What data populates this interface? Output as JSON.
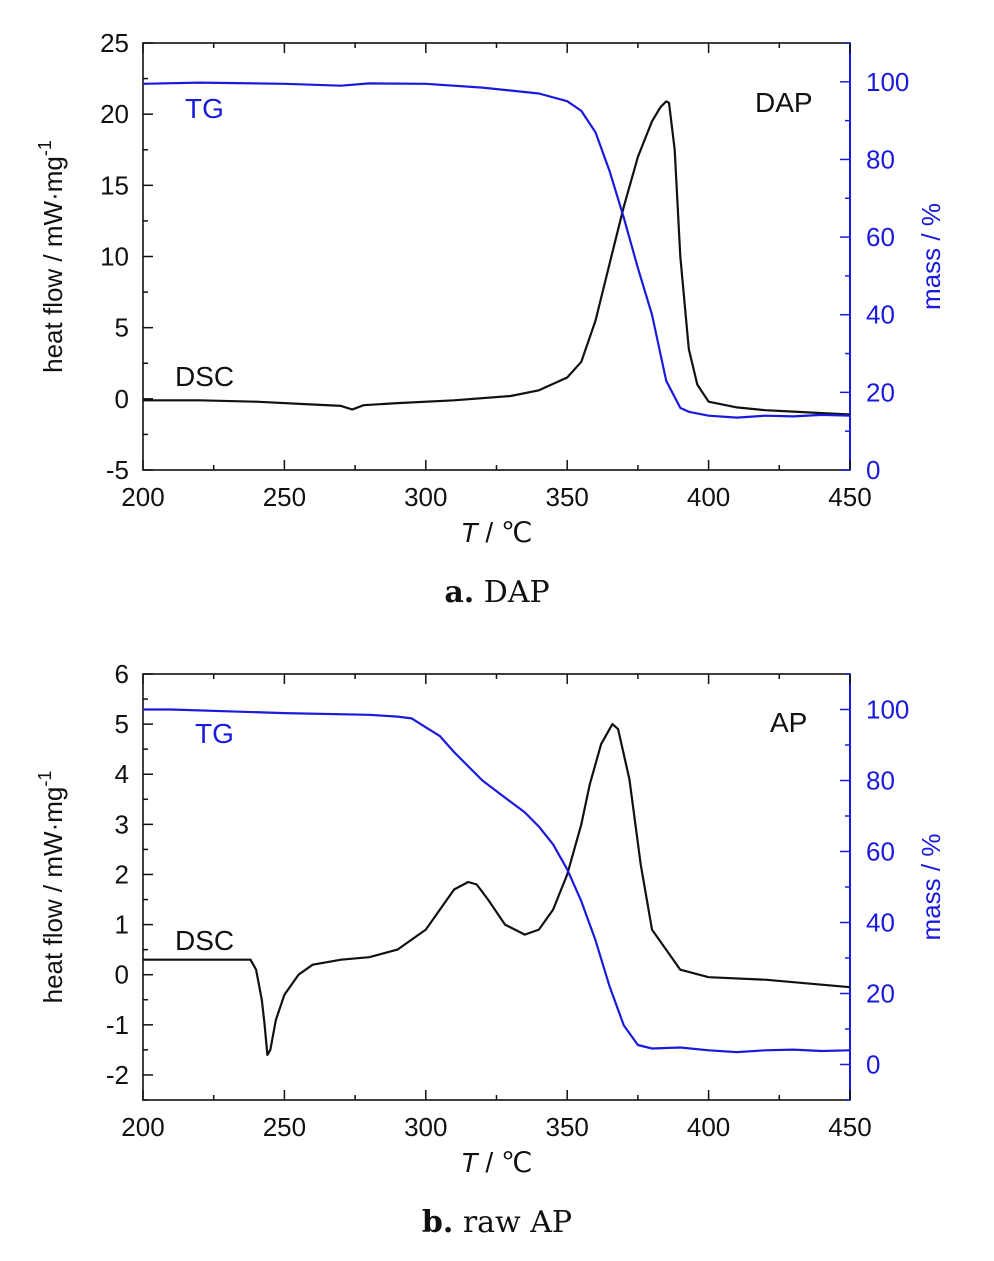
{
  "colors": {
    "dsc": "#111111",
    "tg": "#1a1adc",
    "axis": "#111111"
  },
  "chart_data": [
    {
      "type": "line",
      "panel_letter": "a.",
      "panel_caption": "DAP",
      "sample_label": "DAP",
      "xlabel_var": "T",
      "xlabel_unit": " / ℃",
      "ylabel": "heat flow / mW·mg",
      "ylabel_exp": "-1",
      "y2label": "mass / %",
      "xlim": [
        200,
        450
      ],
      "ylim": [
        -5,
        25
      ],
      "y2lim": [
        0,
        110
      ],
      "xticks": [
        200,
        250,
        300,
        350,
        400,
        450
      ],
      "yticks": [
        -5,
        0,
        5,
        10,
        15,
        20,
        25
      ],
      "y2ticks": [
        0,
        20,
        40,
        60,
        80,
        100
      ],
      "series": [
        {
          "name": "DSC",
          "axis": "left",
          "x": [
            200,
            220,
            240,
            260,
            270,
            274,
            278,
            290,
            310,
            330,
            340,
            350,
            355,
            360,
            365,
            370,
            375,
            380,
            383,
            385,
            386,
            388,
            390,
            393,
            396,
            400,
            410,
            420,
            430,
            440,
            450
          ],
          "y": [
            -0.1,
            -0.1,
            -0.2,
            -0.4,
            -0.5,
            -0.75,
            -0.45,
            -0.3,
            -0.1,
            0.2,
            0.6,
            1.5,
            2.6,
            5.5,
            9.5,
            13.5,
            17.0,
            19.5,
            20.5,
            20.9,
            20.8,
            17.5,
            10.0,
            3.5,
            1.0,
            -0.2,
            -0.6,
            -0.8,
            -0.9,
            -1.0,
            -1.1
          ]
        },
        {
          "name": "TG",
          "axis": "right",
          "x": [
            200,
            220,
            250,
            270,
            280,
            300,
            320,
            340,
            350,
            355,
            360,
            365,
            370,
            375,
            380,
            385,
            390,
            393,
            400,
            410,
            420,
            430,
            440,
            450
          ],
          "y": [
            99.5,
            99.8,
            99.5,
            99,
            99.6,
            99.5,
            98.5,
            97,
            95,
            92.5,
            87,
            77,
            65,
            52,
            40,
            23,
            16,
            15,
            14,
            13.5,
            14,
            13.8,
            14.2,
            14
          ]
        }
      ]
    },
    {
      "type": "line",
      "panel_letter": "b.",
      "panel_caption": "raw AP",
      "sample_label": "AP",
      "xlabel_var": "T",
      "xlabel_unit": " / ℃",
      "ylabel": "heat flow / mW·mg",
      "ylabel_exp": "-1",
      "y2label": "mass / %",
      "xlim": [
        200,
        450
      ],
      "ylim": [
        -2.5,
        6
      ],
      "y2lim": [
        -10,
        110
      ],
      "xticks": [
        200,
        250,
        300,
        350,
        400,
        450
      ],
      "yticks": [
        -2,
        -1,
        0,
        1,
        2,
        3,
        4,
        5,
        6
      ],
      "y2ticks": [
        0,
        20,
        40,
        60,
        80,
        100
      ],
      "series": [
        {
          "name": "DSC",
          "axis": "left",
          "x": [
            200,
            220,
            238,
            240,
            242,
            243,
            244,
            245,
            247,
            250,
            255,
            260,
            270,
            280,
            290,
            300,
            305,
            310,
            315,
            318,
            322,
            328,
            335,
            340,
            345,
            350,
            355,
            358,
            362,
            366,
            368,
            372,
            376,
            380,
            390,
            400,
            420,
            440,
            450
          ],
          "y": [
            0.3,
            0.3,
            0.3,
            0.1,
            -0.5,
            -1.0,
            -1.6,
            -1.5,
            -0.9,
            -0.4,
            0.0,
            0.2,
            0.3,
            0.35,
            0.5,
            0.9,
            1.3,
            1.7,
            1.85,
            1.8,
            1.5,
            1.0,
            0.8,
            0.9,
            1.3,
            2.0,
            3.0,
            3.8,
            4.6,
            5.0,
            4.9,
            3.9,
            2.2,
            0.9,
            0.1,
            -0.05,
            -0.1,
            -0.2,
            -0.25
          ]
        },
        {
          "name": "TG",
          "axis": "right",
          "x": [
            200,
            210,
            250,
            280,
            290,
            295,
            300,
            305,
            310,
            320,
            330,
            335,
            340,
            345,
            350,
            355,
            360,
            365,
            370,
            375,
            380,
            390,
            400,
            410,
            420,
            430,
            440,
            450
          ],
          "y": [
            100,
            100,
            99,
            98.5,
            98,
            97.5,
            95,
            92.5,
            88,
            80,
            74,
            71,
            67,
            62,
            55,
            46,
            35,
            22,
            11,
            5.5,
            4.5,
            4.8,
            4,
            3.5,
            4,
            4.2,
            3.8,
            4
          ]
        }
      ]
    }
  ]
}
